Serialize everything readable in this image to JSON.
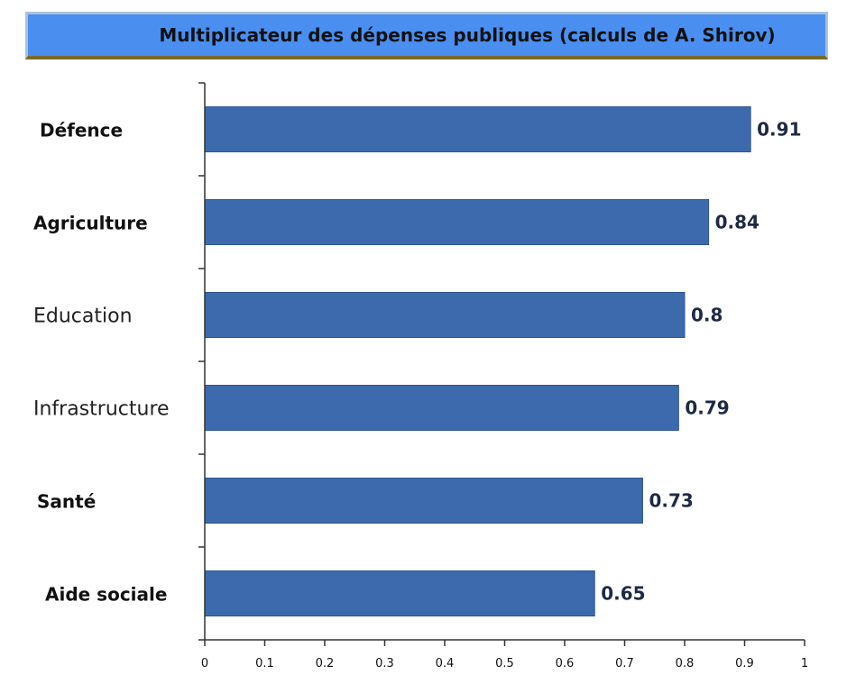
{
  "chart_data": {
    "type": "bar",
    "orientation": "horizontal",
    "title": "Multiplicateur des dépenses publiques (calculs de A. Shirov)",
    "categories": [
      "Défence",
      "Agriculture",
      "Education",
      "Infrastructure",
      "Santé",
      "Aide sociale"
    ],
    "values": [
      0.91,
      0.84,
      0.8,
      0.79,
      0.73,
      0.65
    ],
    "value_labels": [
      "0.91",
      "0.84",
      "0.8",
      "0.79",
      "0.73",
      "0.65"
    ],
    "xlim": [
      0,
      1
    ],
    "xticks": [
      "0",
      "0.1",
      "0.2",
      "0.3",
      "0.4",
      "0.5",
      "0.6",
      "0.7",
      "0.8",
      "0.9",
      "1"
    ],
    "xlabel": "",
    "ylabel": "",
    "grid": false,
    "legend": "none",
    "bar_color": "#3d6aad",
    "title_bg_color": "#4a8ef0"
  }
}
